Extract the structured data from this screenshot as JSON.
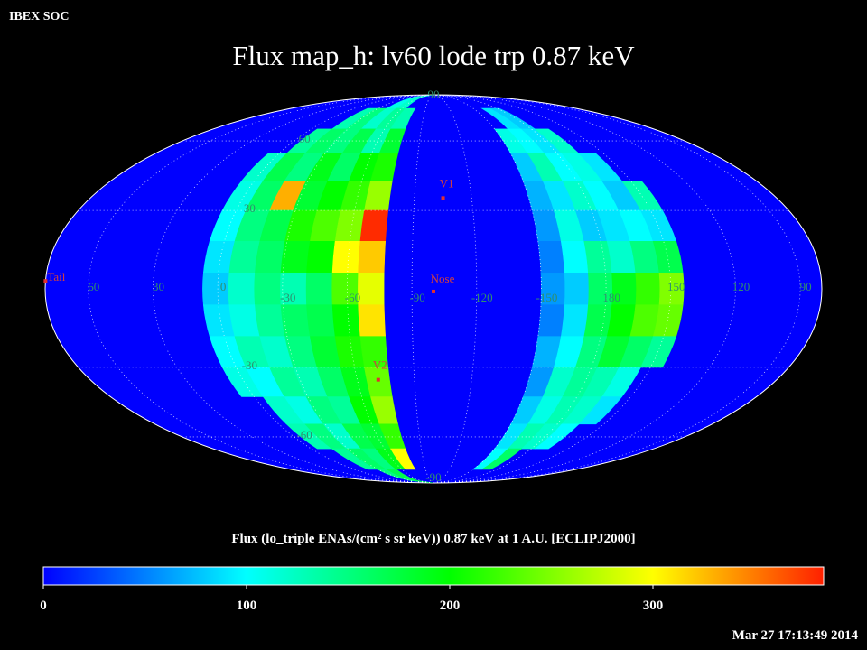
{
  "header": "IBEX SOC",
  "title": "Flux map_h: lv60 lode trp 0.87 keV",
  "timestamp": "Mar 27 17:13:49 2014",
  "map": {
    "projection": "mollweide",
    "center_lon": 260,
    "lon_ticks": [
      60,
      30,
      0,
      -30,
      -60,
      -90,
      -120,
      -150,
      180,
      150,
      120,
      90
    ],
    "lat_ticks": [
      90,
      60,
      30,
      -30,
      -60,
      -90
    ],
    "lat_edges": [
      90,
      78,
      66,
      54,
      42,
      30,
      18,
      6,
      -6,
      -18,
      -30,
      -42,
      -54,
      -66,
      -78,
      -90
    ],
    "bands": [
      {
        "lon_range": [
          7,
          -77
        ],
        "values": [
          [
            null,
            null,
            null,
            null,
            110,
            120,
            null
          ],
          [
            null,
            null,
            130,
            150,
            120,
            140,
            130
          ],
          [
            null,
            140,
            160,
            150,
            170,
            130,
            180
          ],
          [
            120,
            170,
            150,
            190,
            160,
            200,
            210
          ],
          [
            110,
            160,
            330,
            180,
            200,
            220,
            260
          ],
          [
            100,
            150,
            170,
            210,
            230,
            250,
            380
          ],
          [
            90,
            140,
            160,
            190,
            200,
            300,
            320
          ],
          [
            80,
            120,
            150,
            130,
            160,
            230,
            290
          ],
          [
            90,
            110,
            140,
            160,
            170,
            200,
            310
          ],
          [
            100,
            130,
            120,
            150,
            180,
            210,
            220
          ],
          [
            110,
            100,
            140,
            130,
            160,
            190,
            240
          ],
          [
            null,
            120,
            110,
            150,
            140,
            200,
            260
          ],
          [
            null,
            130,
            150,
            120,
            170,
            180,
            220
          ],
          [
            null,
            null,
            140,
            160,
            150,
            190,
            300
          ],
          [
            null,
            null,
            null,
            150,
            170,
            null,
            null
          ]
        ]
      },
      {
        "lon_range": [
          210,
          144
        ],
        "values": [
          [
            null,
            null,
            null,
            null,
            null,
            null
          ],
          [
            null,
            90,
            80,
            null,
            null,
            null
          ],
          [
            110,
            100,
            90,
            120,
            null,
            null
          ],
          [
            80,
            130,
            100,
            110,
            90,
            null
          ],
          [
            70,
            90,
            120,
            100,
            80,
            130
          ],
          [
            60,
            110,
            80,
            90,
            100,
            90
          ],
          [
            50,
            100,
            140,
            120,
            150,
            170
          ],
          [
            60,
            80,
            160,
            190,
            220,
            250
          ],
          [
            50,
            90,
            170,
            200,
            230,
            240
          ],
          [
            70,
            100,
            150,
            180,
            160,
            140
          ],
          [
            60,
            120,
            140,
            130,
            110,
            null
          ],
          [
            80,
            110,
            130,
            120,
            90,
            null
          ],
          [
            90,
            130,
            120,
            100,
            null,
            null
          ],
          [
            100,
            160,
            null,
            null,
            null,
            null
          ],
          [
            null,
            null,
            null,
            null,
            null,
            null
          ]
        ]
      }
    ],
    "markers": [
      {
        "label": "V1",
        "lon": 255,
        "lat": 35
      },
      {
        "label": "Nose",
        "lon": 260,
        "lat": -1
      },
      {
        "label": "V2",
        "lon": 289,
        "lat": -35
      },
      {
        "label": "Tail",
        "lon": 80,
        "lat": 3
      }
    ]
  },
  "colorbar": {
    "label": "Flux (lo_triple ENAs/(cm² s sr keV)) 0.87 keV at 1 A.U. [ECLIPJ2000]",
    "clim": [
      0,
      384
    ],
    "ticks": [
      0,
      100,
      200,
      300
    ],
    "colormap": [
      {
        "value": 0,
        "color": "#0000ff"
      },
      {
        "value": 100,
        "color": "#00ffff"
      },
      {
        "value": 200,
        "color": "#00ff00"
      },
      {
        "value": 300,
        "color": "#ffff00"
      },
      {
        "value": 384,
        "color": "#ff2000"
      }
    ]
  }
}
